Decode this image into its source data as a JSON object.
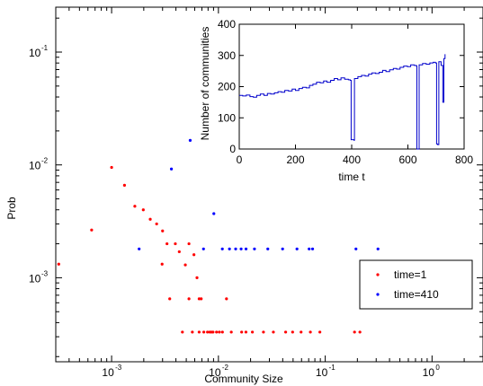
{
  "chart_data": [
    {
      "type": "scatter",
      "title": "",
      "xlabel": "Community Size",
      "ylabel": "Prob",
      "xscale": "log",
      "yscale": "log",
      "xlim": [
        0.0003,
        3
      ],
      "ylim": [
        0.00018,
        0.25
      ],
      "x_ticks": [
        {
          "value": 0.001,
          "base": "10",
          "exp": "-3"
        },
        {
          "value": 0.01,
          "base": "10",
          "exp": "-2"
        },
        {
          "value": 0.1,
          "base": "10",
          "exp": "-1"
        },
        {
          "value": 1,
          "base": "10",
          "exp": "0"
        }
      ],
      "y_ticks": [
        {
          "value": 0.001,
          "base": "10",
          "exp": "-3"
        },
        {
          "value": 0.01,
          "base": "10",
          "exp": "-2"
        },
        {
          "value": 0.1,
          "base": "10",
          "exp": "-1"
        }
      ],
      "grid": false,
      "legend_position": "bottom-right",
      "series": [
        {
          "name": "time=1",
          "color": "#ff0000",
          "points": [
            [
              0.00032,
              0.00132
            ],
            [
              0.00065,
              0.00265
            ],
            [
              0.001,
              0.0095
            ],
            [
              0.00132,
              0.0066
            ],
            [
              0.00165,
              0.0043
            ],
            [
              0.00198,
              0.004
            ],
            [
              0.0023,
              0.0033
            ],
            [
              0.00264,
              0.003
            ],
            [
              0.003,
              0.0026
            ],
            [
              0.00297,
              0.00132
            ],
            [
              0.0033,
              0.002
            ],
            [
              0.0035,
              0.00065
            ],
            [
              0.00395,
              0.002
            ],
            [
              0.0043,
              0.0017
            ],
            [
              0.0046,
              0.00033
            ],
            [
              0.0049,
              0.0013
            ],
            [
              0.0053,
              0.002
            ],
            [
              0.0053,
              0.00065
            ],
            [
              0.0057,
              0.00033
            ],
            [
              0.0059,
              0.0016
            ],
            [
              0.0063,
              0.001
            ],
            [
              0.0066,
              0.00065
            ],
            [
              0.0066,
              0.00033
            ],
            [
              0.0069,
              0.00065
            ],
            [
              0.0073,
              0.00033
            ],
            [
              0.0079,
              0.00033
            ],
            [
              0.0083,
              0.00033
            ],
            [
              0.0086,
              0.00033
            ],
            [
              0.0089,
              0.00033
            ],
            [
              0.0096,
              0.00033
            ],
            [
              0.0102,
              0.00033
            ],
            [
              0.0109,
              0.00033
            ],
            [
              0.0119,
              0.00065
            ],
            [
              0.0132,
              0.00033
            ],
            [
              0.0165,
              0.00033
            ],
            [
              0.0181,
              0.00033
            ],
            [
              0.0208,
              0.00033
            ],
            [
              0.0264,
              0.00033
            ],
            [
              0.0327,
              0.00033
            ],
            [
              0.0426,
              0.00033
            ],
            [
              0.0495,
              0.00033
            ],
            [
              0.0594,
              0.00033
            ],
            [
              0.0726,
              0.00033
            ],
            [
              0.0891,
              0.00033
            ],
            [
              0.1881,
              0.00033
            ],
            [
              0.2112,
              0.00033
            ]
          ]
        },
        {
          "name": "time=410",
          "color": "#0000ff",
          "points": [
            [
              0.00181,
              0.0018
            ],
            [
              0.00363,
              0.0092
            ],
            [
              0.00544,
              0.0165
            ],
            [
              0.00725,
              0.0018
            ],
            [
              0.00906,
              0.0037
            ],
            [
              0.01088,
              0.0018
            ],
            [
              0.01269,
              0.0018
            ],
            [
              0.0145,
              0.0018
            ],
            [
              0.01631,
              0.0018
            ],
            [
              0.01813,
              0.0018
            ],
            [
              0.02175,
              0.0018
            ],
            [
              0.029,
              0.0018
            ],
            [
              0.03988,
              0.0018
            ],
            [
              0.05438,
              0.0018
            ],
            [
              0.07069,
              0.0018
            ],
            [
              0.07613,
              0.0018
            ],
            [
              0.19394,
              0.0018
            ],
            [
              0.31175,
              0.0018
            ]
          ]
        }
      ]
    },
    {
      "type": "line",
      "title": "",
      "xlabel": "time t",
      "ylabel": "Number of communities",
      "xlim": [
        0,
        800
      ],
      "ylim": [
        0,
        400
      ],
      "x_ticks": [
        0,
        200,
        400,
        600,
        800
      ],
      "y_ticks": [
        0,
        100,
        200,
        300,
        400
      ],
      "grid": false,
      "series": [
        {
          "color": "#0000cc",
          "points": [
            [
              0,
              172
            ],
            [
              12,
              170
            ],
            [
              25,
              173
            ],
            [
              38,
              168
            ],
            [
              50,
              166
            ],
            [
              62,
              172
            ],
            [
              75,
              176
            ],
            [
              88,
              172
            ],
            [
              100,
              178
            ],
            [
              112,
              176
            ],
            [
              125,
              180
            ],
            [
              138,
              184
            ],
            [
              150,
              182
            ],
            [
              162,
              188
            ],
            [
              175,
              186
            ],
            [
              188,
              192
            ],
            [
              200,
              188
            ],
            [
              212,
              194
            ],
            [
              225,
              198
            ],
            [
              238,
              196
            ],
            [
              250,
              204
            ],
            [
              262,
              208
            ],
            [
              275,
              214
            ],
            [
              288,
              212
            ],
            [
              300,
              218
            ],
            [
              312,
              214
            ],
            [
              325,
              220
            ],
            [
              338,
              226
            ],
            [
              350,
              222
            ],
            [
              362,
              228
            ],
            [
              375,
              224
            ],
            [
              388,
              222
            ],
            [
              395,
              220
            ],
            [
              398,
              30
            ],
            [
              408,
              28
            ],
            [
              410,
              226
            ],
            [
              422,
              232
            ],
            [
              435,
              236
            ],
            [
              448,
              234
            ],
            [
              460,
              240
            ],
            [
              472,
              244
            ],
            [
              485,
              242
            ],
            [
              498,
              246
            ],
            [
              510,
              252
            ],
            [
              522,
              248
            ],
            [
              535,
              254
            ],
            [
              548,
              258
            ],
            [
              560,
              256
            ],
            [
              572,
              262
            ],
            [
              585,
              266
            ],
            [
              598,
              264
            ],
            [
              610,
              270
            ],
            [
              622,
              268
            ],
            [
              630,
              266
            ],
            [
              632,
              0
            ],
            [
              636,
              0
            ],
            [
              640,
              270
            ],
            [
              652,
              274
            ],
            [
              665,
              272
            ],
            [
              678,
              276
            ],
            [
              690,
              278
            ],
            [
              698,
              276
            ],
            [
              702,
              16
            ],
            [
              706,
              14
            ],
            [
              710,
              280
            ],
            [
              718,
              268
            ],
            [
              724,
              150
            ],
            [
              728,
              290
            ],
            [
              732,
              304
            ]
          ]
        }
      ]
    }
  ]
}
